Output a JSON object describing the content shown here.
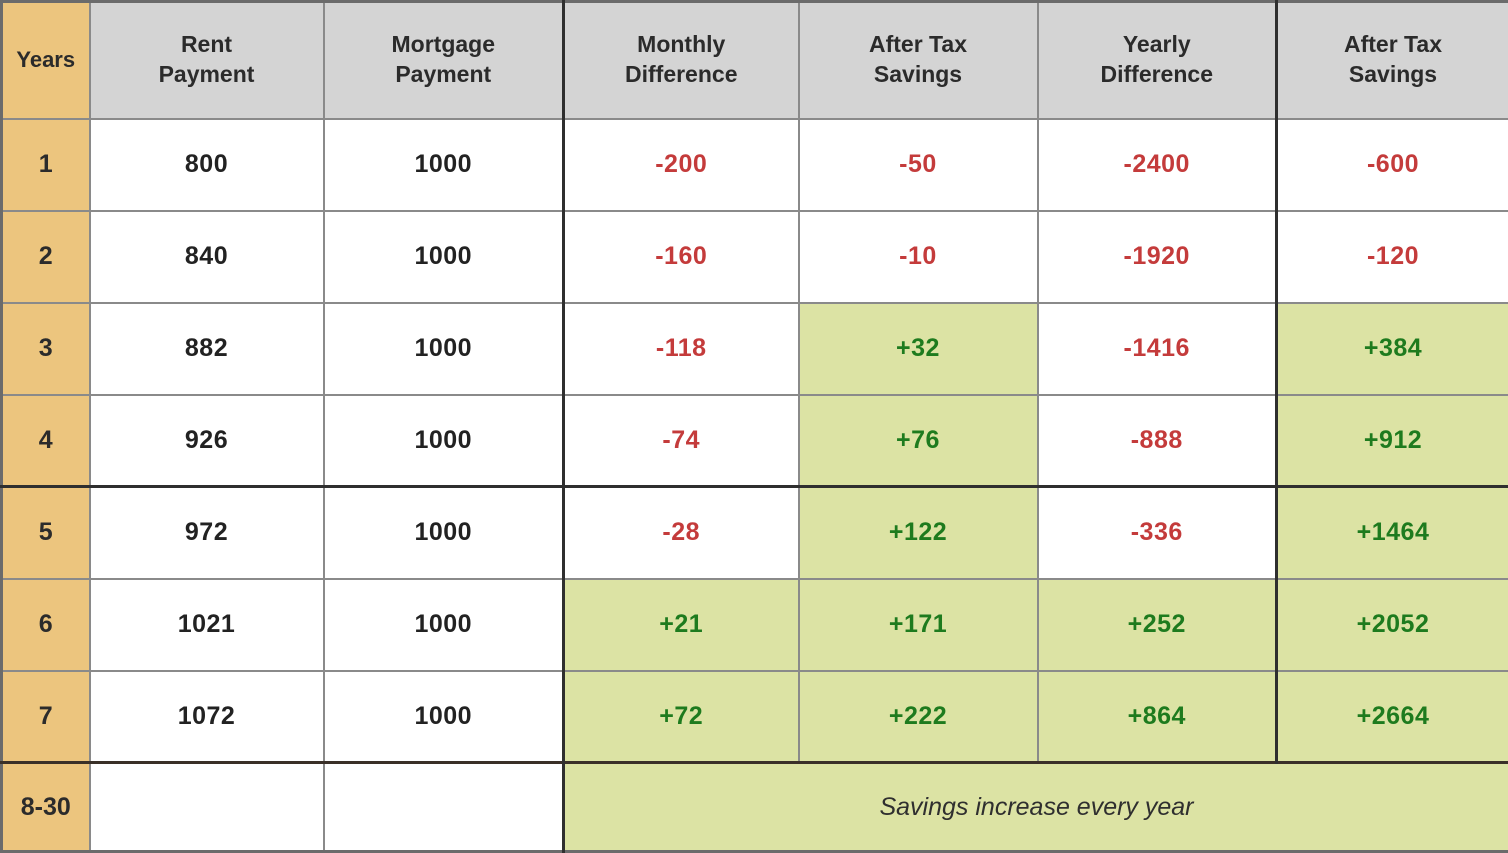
{
  "colors": {
    "years_bg": "#ecc57e",
    "header_bg": "#d4d4d4",
    "positive_bg": "#dce3a4",
    "positive_text": "#1e7b1e",
    "negative_text": "#c43b3b"
  },
  "chart_data": {
    "type": "table",
    "columns": [
      "Years",
      "Rent Payment",
      "Mortgage Payment",
      "Monthly Difference",
      "After Tax Savings",
      "Yearly Difference",
      "After Tax Savings"
    ],
    "columns_display": [
      "Years",
      "Rent\nPayment",
      "Mortgage\nPayment",
      "Monthly\nDifference",
      "After Tax\nSavings",
      "Yearly\nDifference",
      "After Tax\nSavings"
    ],
    "rows": [
      {
        "year": "1",
        "cells": [
          {
            "value": "800",
            "state": "plain"
          },
          {
            "value": "1000",
            "state": "plain"
          },
          {
            "value": "-200",
            "state": "neg"
          },
          {
            "value": "-50",
            "state": "neg"
          },
          {
            "value": "-2400",
            "state": "neg"
          },
          {
            "value": "-600",
            "state": "neg"
          }
        ]
      },
      {
        "year": "2",
        "cells": [
          {
            "value": "840",
            "state": "plain"
          },
          {
            "value": "1000",
            "state": "plain"
          },
          {
            "value": "-160",
            "state": "neg"
          },
          {
            "value": "-10",
            "state": "neg"
          },
          {
            "value": "-1920",
            "state": "neg"
          },
          {
            "value": "-120",
            "state": "neg"
          }
        ]
      },
      {
        "year": "3",
        "cells": [
          {
            "value": "882",
            "state": "plain"
          },
          {
            "value": "1000",
            "state": "plain"
          },
          {
            "value": "-118",
            "state": "neg"
          },
          {
            "value": "+32",
            "state": "pos"
          },
          {
            "value": "-1416",
            "state": "neg"
          },
          {
            "value": "+384",
            "state": "pos"
          }
        ]
      },
      {
        "year": "4",
        "cells": [
          {
            "value": "926",
            "state": "plain"
          },
          {
            "value": "1000",
            "state": "plain"
          },
          {
            "value": "-74",
            "state": "neg"
          },
          {
            "value": "+76",
            "state": "pos"
          },
          {
            "value": "-888",
            "state": "neg"
          },
          {
            "value": "+912",
            "state": "pos"
          }
        ]
      },
      {
        "year": "5",
        "cells": [
          {
            "value": "972",
            "state": "plain"
          },
          {
            "value": "1000",
            "state": "plain"
          },
          {
            "value": "-28",
            "state": "neg"
          },
          {
            "value": "+122",
            "state": "pos"
          },
          {
            "value": "-336",
            "state": "neg"
          },
          {
            "value": "+1464",
            "state": "pos"
          }
        ]
      },
      {
        "year": "6",
        "cells": [
          {
            "value": "1021",
            "state": "plain"
          },
          {
            "value": "1000",
            "state": "plain"
          },
          {
            "value": "+21",
            "state": "pos"
          },
          {
            "value": "+171",
            "state": "pos"
          },
          {
            "value": "+252",
            "state": "pos"
          },
          {
            "value": "+2052",
            "state": "pos"
          }
        ]
      },
      {
        "year": "7",
        "cells": [
          {
            "value": "1072",
            "state": "plain"
          },
          {
            "value": "1000",
            "state": "plain"
          },
          {
            "value": "+72",
            "state": "pos"
          },
          {
            "value": "+222",
            "state": "pos"
          },
          {
            "value": "+864",
            "state": "pos"
          },
          {
            "value": "+2664",
            "state": "pos"
          }
        ]
      }
    ],
    "span_row": {
      "year": "8-30",
      "rent": "",
      "mortgage": "",
      "note": "Savings increase every year"
    }
  }
}
